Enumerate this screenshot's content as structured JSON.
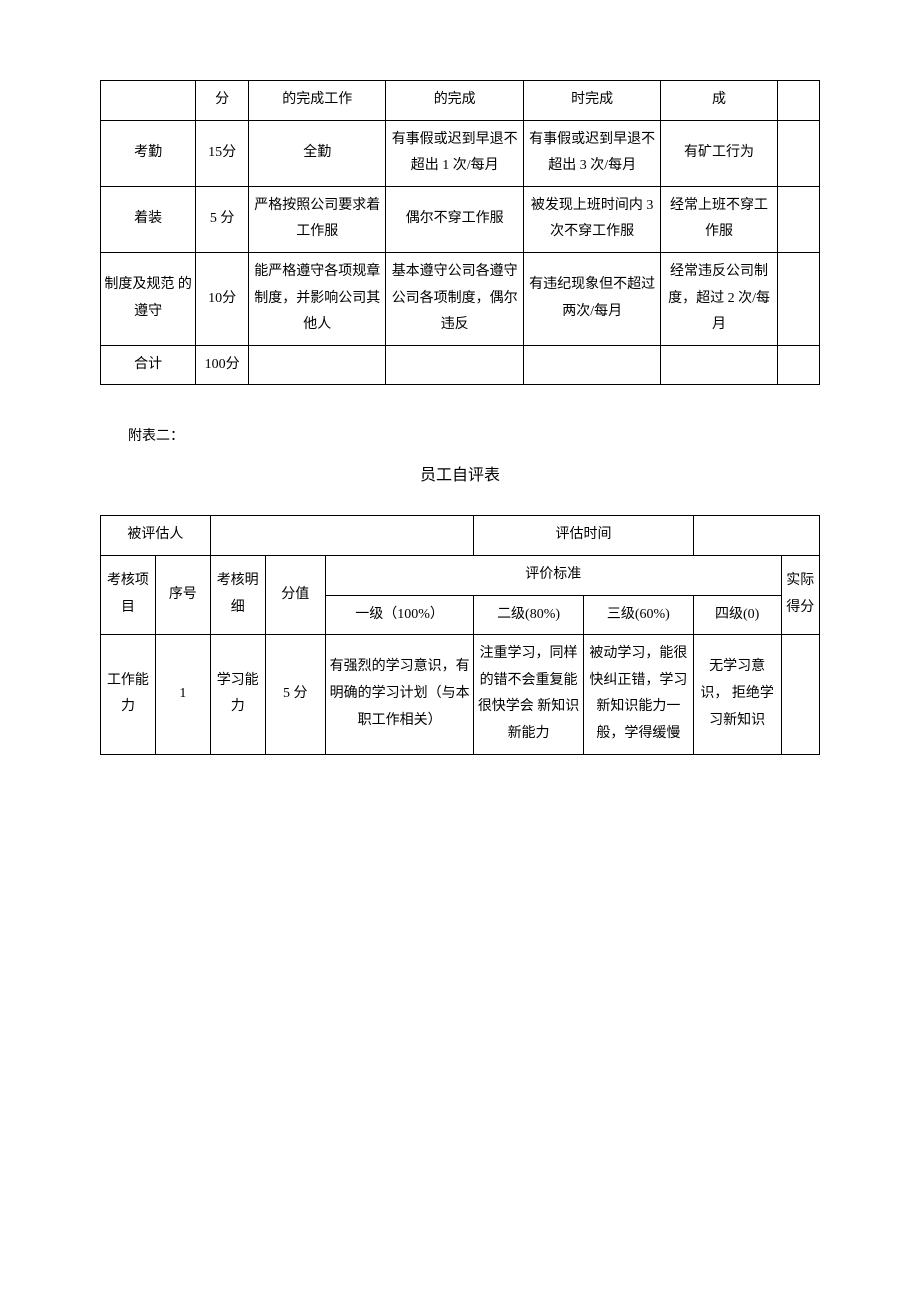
{
  "table1": {
    "rows": [
      {
        "c0": "",
        "c1": "分",
        "c2": "的完成工作",
        "c3": "的完成",
        "c4": "时完成",
        "c5": "成",
        "c6": ""
      },
      {
        "c0": "考勤",
        "c1": "15分",
        "c2": "全勤",
        "c3": "有事假或迟到早退不超出 1 次/每月",
        "c4": "有事假或迟到早退不超出 3 次/每月",
        "c5": "有矿工行为",
        "c6": ""
      },
      {
        "c0": "着装",
        "c1": "5 分",
        "c2": "严格按照公司要求着工作服",
        "c3": "偶尔不穿工作服",
        "c4": "被发现上班时间内 3 次不穿工作服",
        "c5": "经常上班不穿工作服",
        "c6": ""
      },
      {
        "c0": "制度及规范\n的遵守",
        "c1": "10分",
        "c2": "能严格遵守各项规章制度，并影响公司其他人",
        "c3": "基本遵守公司各遵守公司各项制度，偶尔违反",
        "c4": "有违纪现象但不超过两次/每月",
        "c5": "经常违反公司制度，超过 2 次/每月",
        "c6": ""
      },
      {
        "c0": "合计",
        "c1": "100分",
        "c2": "",
        "c3": "",
        "c4": "",
        "c5": "",
        "c6": ""
      }
    ]
  },
  "attachment_label": "附表二：",
  "table2_title": "员工自评表",
  "table2": {
    "header_row": {
      "evaluated_label": "被评估人",
      "eval_time_label": "评估时间"
    },
    "columns": {
      "project": "考核项目",
      "seq": "序号",
      "detail": "考核明细",
      "score": "分值",
      "criteria": "评价标准",
      "lvl1": "一级（100%）",
      "lvl2": "二级(80%)",
      "lvl3": "三级(60%)",
      "lvl4": "四级(0)",
      "actual": "实际得分"
    },
    "row1": {
      "project": "工作能力",
      "seq": "1",
      "detail": "学习能力",
      "score": "5 分",
      "lvl1": "有强烈的学习意识，有明确的学习计划（与本职工作相关）",
      "lvl2": "注重学习，同样的错不会重复能很快学会\n新知识新能力",
      "lvl3": "被动学习，能很快纠正错，学习新知识能力一般，学得缓慢",
      "lvl4": "无学习意识，\n拒绝学习新知识",
      "actual": ""
    }
  }
}
